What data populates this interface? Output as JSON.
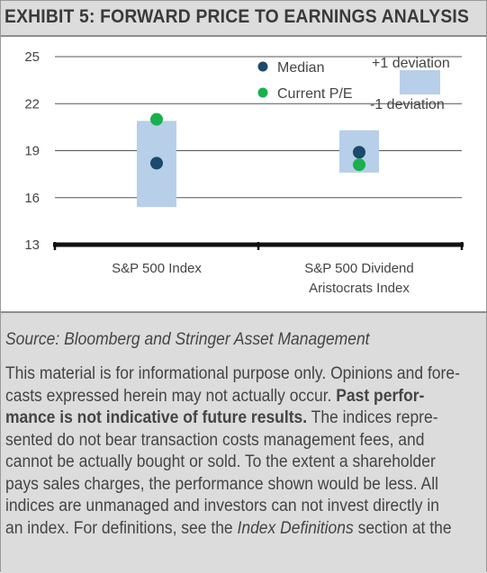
{
  "exhibit": {
    "title": "EXHIBIT 5: FORWARD PRICE TO EARNINGS ANALYSIS"
  },
  "chart_data": {
    "type": "scatter",
    "title": "",
    "xlabel": "",
    "ylabel": "",
    "ylim": [
      13,
      25
    ],
    "yticks": [
      25,
      22,
      19,
      16,
      13
    ],
    "grid": true,
    "legend_position": "top-right",
    "categories": [
      {
        "lines": [
          "S&P 500 Index"
        ]
      },
      {
        "lines": [
          "S&P 500 Dividend",
          "Aristocrats Index"
        ]
      }
    ],
    "range": {
      "name": "+1 deviation / -1 deviation",
      "color": "#b7cfe8",
      "lows": [
        15.4,
        17.6
      ],
      "highs": [
        20.9,
        20.3
      ]
    },
    "series": [
      {
        "name": "Median",
        "color": "#1b4a6b",
        "values": [
          18.2,
          18.9
        ]
      },
      {
        "name": "Current P/E",
        "color": "#19b04d",
        "values": [
          21.0,
          18.1
        ]
      }
    ],
    "legend": {
      "median": "Median",
      "current": "Current P/E",
      "plus_dev": "+1 deviation",
      "minus_dev": "-1 deviation"
    }
  },
  "footer": {
    "source": "Source: Bloomberg and Stringer Asset Management",
    "disclaimer_lines": [
      [
        {
          "t": "This material is for informational purpose only. Opinions and fore-"
        }
      ],
      [
        {
          "t": "casts expressed herein may not actually occur. "
        },
        {
          "t": "Past perfor-",
          "b": true
        }
      ],
      [
        {
          "t": "mance is not indicative of future results.",
          "b": true
        },
        {
          "t": " The indices repre-"
        }
      ],
      [
        {
          "t": "sented do not bear transaction costs management fees, and"
        }
      ],
      [
        {
          "t": "cannot be actually bought or sold. To the extent a shareholder"
        }
      ],
      [
        {
          "t": "pays sales charges, the performance shown would be less. All"
        }
      ],
      [
        {
          "t": "indices are unmanaged and investors can not invest directly in"
        }
      ],
      [
        {
          "t": "an index. For definitions, see the "
        },
        {
          "t": "Index Definitions",
          "i": true
        },
        {
          "t": " section at the"
        }
      ]
    ]
  }
}
